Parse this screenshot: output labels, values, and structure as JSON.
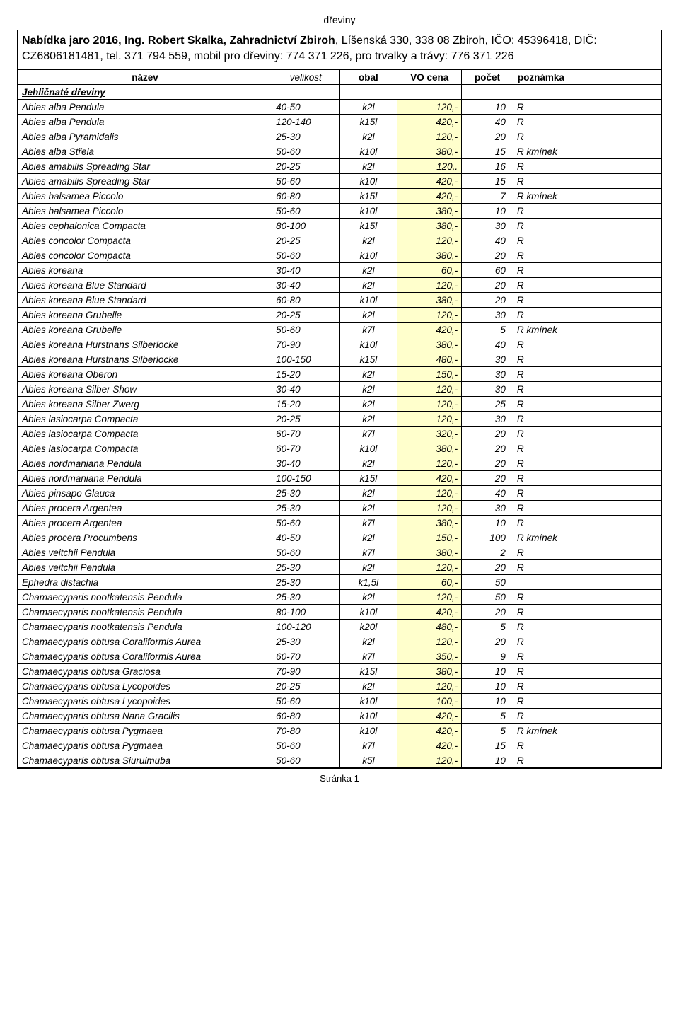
{
  "doc_header": "dřeviny",
  "title_line1_strong": "Nabídka jaro 2016, Ing. Robert Skalka, Zahradnictví  Zbiroh",
  "title_line1_rest": ", Líšenská 330, 338 08 Zbiroh, IČO: 45396418, DIČ: CZ6806181481, tel. 371 794 559, mobil pro dřeviny: 774 371 226, pro trvalky a trávy: 776 371 226",
  "columns": {
    "nazev": "název",
    "velikost": "velikost",
    "obal": "obal",
    "vocena": "VO cena",
    "pocet": "počet",
    "poznamka": "poznámka"
  },
  "section_title": "Jehličnaté dřeviny",
  "price_bg": "#ffffcc",
  "rows": [
    {
      "n": "Abies alba Pendula",
      "s": "40-50",
      "o": "k2l",
      "p": "120,-",
      "c": "10",
      "z": "R"
    },
    {
      "n": "Abies alba Pendula",
      "s": "120-140",
      "o": "k15l",
      "p": "420,-",
      "c": "40",
      "z": "R"
    },
    {
      "n": "Abies alba Pyramidalis",
      "s": "25-30",
      "o": "k2l",
      "p": "120,-",
      "c": "20",
      "z": "R"
    },
    {
      "n": "Abies alba Střela",
      "s": "50-60",
      "o": "k10l",
      "p": "380,-",
      "c": "15",
      "z": "R kmínek"
    },
    {
      "n": "Abies amabilis Spreading Star",
      "s": "20-25",
      "o": "k2l",
      "p": "120,.",
      "c": "16",
      "z": "R"
    },
    {
      "n": "Abies amabilis Spreading Star",
      "s": "50-60",
      "o": "k10l",
      "p": "420,-",
      "c": "15",
      "z": "R"
    },
    {
      "n": "Abies balsamea Piccolo",
      "s": "60-80",
      "o": "k15l",
      "p": "420,-",
      "c": "7",
      "z": "R kmínek"
    },
    {
      "n": "Abies balsamea Piccolo",
      "s": "50-60",
      "o": "k10l",
      "p": "380,-",
      "c": "10",
      "z": "R"
    },
    {
      "n": "Abies cephalonica Compacta",
      "s": "80-100",
      "o": "k15l",
      "p": "380,-",
      "c": "30",
      "z": "R"
    },
    {
      "n": "Abies concolor Compacta",
      "s": "20-25",
      "o": "k2l",
      "p": "120,-",
      "c": "40",
      "z": "R"
    },
    {
      "n": "Abies concolor Compacta",
      "s": "50-60",
      "o": "k10l",
      "p": "380,-",
      "c": "20",
      "z": "R"
    },
    {
      "n": "Abies koreana",
      "s": "30-40",
      "o": "k2l",
      "p": "60,-",
      "c": "60",
      "z": "R"
    },
    {
      "n": "Abies koreana Blue Standard",
      "s": "30-40",
      "o": "k2l",
      "p": "120,-",
      "c": "20",
      "z": "R"
    },
    {
      "n": "Abies koreana Blue Standard",
      "s": "60-80",
      "o": "k10l",
      "p": "380,-",
      "c": "20",
      "z": "R"
    },
    {
      "n": "Abies koreana Grubelle",
      "s": "20-25",
      "o": "k2l",
      "p": "120,-",
      "c": "30",
      "z": "R"
    },
    {
      "n": "Abies koreana Grubelle",
      "s": "50-60",
      "o": "k7l",
      "p": "420,-",
      "c": "5",
      "z": "R kmínek"
    },
    {
      "n": "Abies koreana Hurstnans Silberlocke",
      "s": "70-90",
      "o": "k10l",
      "p": "380,-",
      "c": "40",
      "z": "R"
    },
    {
      "n": "Abies koreana Hurstnans Silberlocke",
      "s": "100-150",
      "o": "k15l",
      "p": "480,-",
      "c": "30",
      "z": "R"
    },
    {
      "n": "Abies koreana Oberon",
      "s": "15-20",
      "o": "k2l",
      "p": "150,-",
      "c": "30",
      "z": "R"
    },
    {
      "n": "Abies koreana Silber Show",
      "s": "30-40",
      "o": "k2l",
      "p": "120,-",
      "c": "30",
      "z": "R"
    },
    {
      "n": "Abies koreana Silber Zwerg",
      "s": "15-20",
      "o": "k2l",
      "p": "120,-",
      "c": "25",
      "z": "R"
    },
    {
      "n": "Abies lasiocarpa Compacta",
      "s": "20-25",
      "o": "k2l",
      "p": "120,-",
      "c": "30",
      "z": "R"
    },
    {
      "n": "Abies lasiocarpa Compacta",
      "s": "60-70",
      "o": "k7l",
      "p": "320,-",
      "c": "20",
      "z": "R"
    },
    {
      "n": "Abies lasiocarpa Compacta",
      "s": "60-70",
      "o": "k10l",
      "p": "380,-",
      "c": "20",
      "z": "R"
    },
    {
      "n": "Abies nordmaniana Pendula",
      "s": "30-40",
      "o": "k2l",
      "p": "120,-",
      "c": "20",
      "z": "R"
    },
    {
      "n": "Abies nordmaniana Pendula",
      "s": "100-150",
      "o": "k15l",
      "p": "420,-",
      "c": "20",
      "z": "R"
    },
    {
      "n": "Abies pinsapo Glauca",
      "s": "25-30",
      "o": "k2l",
      "p": "120,-",
      "c": "40",
      "z": "R"
    },
    {
      "n": "Abies procera Argentea",
      "s": "25-30",
      "o": "k2l",
      "p": "120,-",
      "c": "30",
      "z": "R"
    },
    {
      "n": "Abies procera Argentea",
      "s": "50-60",
      "o": "k7l",
      "p": "380,-",
      "c": "10",
      "z": "R"
    },
    {
      "n": "Abies procera Procumbens",
      "s": "40-50",
      "o": "k2l",
      "p": "150,-",
      "c": "100",
      "z": "R kmínek"
    },
    {
      "n": "Abies veitchii Pendula",
      "s": "50-60",
      "o": "k7l",
      "p": "380,-",
      "c": "2",
      "z": "R"
    },
    {
      "n": "Abies veitchii Pendula",
      "s": "25-30",
      "o": "k2l",
      "p": "120,-",
      "c": "20",
      "z": "R"
    },
    {
      "n": "Ephedra distachia",
      "s": "25-30",
      "o": "k1,5l",
      "p": "60,-",
      "c": "50",
      "z": ""
    },
    {
      "n": "Chamaecyparis nootkatensis Pendula",
      "s": "25-30",
      "o": "k2l",
      "p": "120,-",
      "c": "50",
      "z": "R"
    },
    {
      "n": "Chamaecyparis nootkatensis Pendula",
      "s": "80-100",
      "o": "k10l",
      "p": "420,-",
      "c": "20",
      "z": "R"
    },
    {
      "n": "Chamaecyparis nootkatensis Pendula",
      "s": "100-120",
      "o": "k20l",
      "p": "480,-",
      "c": "5",
      "z": "R"
    },
    {
      "n": "Chamaecyparis obtusa Coraliformis Aurea",
      "s": "25-30",
      "o": "k2l",
      "p": "120,-",
      "c": "20",
      "z": "R"
    },
    {
      "n": "Chamaecyparis obtusa Coraliformis Aurea",
      "s": "60-70",
      "o": "k7l",
      "p": "350,-",
      "c": "9",
      "z": "R"
    },
    {
      "n": "Chamaecyparis obtusa Graciosa",
      "s": "70-90",
      "o": "k15l",
      "p": "380,-",
      "c": "10",
      "z": "R"
    },
    {
      "n": "Chamaecyparis obtusa Lycopoides",
      "s": "20-25",
      "o": "k2l",
      "p": "120,-",
      "c": "10",
      "z": "R"
    },
    {
      "n": "Chamaecyparis obtusa Lycopoides",
      "s": "50-60",
      "o": "k10l",
      "p": "100,-",
      "c": "10",
      "z": "R"
    },
    {
      "n": "Chamaecyparis obtusa Nana Gracilis",
      "s": "60-80",
      "o": "k10l",
      "p": "420,-",
      "c": "5",
      "z": "R"
    },
    {
      "n": "Chamaecyparis obtusa Pygmaea",
      "s": "70-80",
      "o": "k10l",
      "p": "420,-",
      "c": "5",
      "z": "R kmínek"
    },
    {
      "n": "Chamaecyparis obtusa Pygmaea",
      "s": "50-60",
      "o": "k7l",
      "p": "420,-",
      "c": "15",
      "z": "R"
    },
    {
      "n": "Chamaecyparis obtusa Siuruimuba",
      "s": "50-60",
      "o": "k5l",
      "p": "120,-",
      "c": "10",
      "z": "R"
    }
  ],
  "footer": "Stránka 1"
}
